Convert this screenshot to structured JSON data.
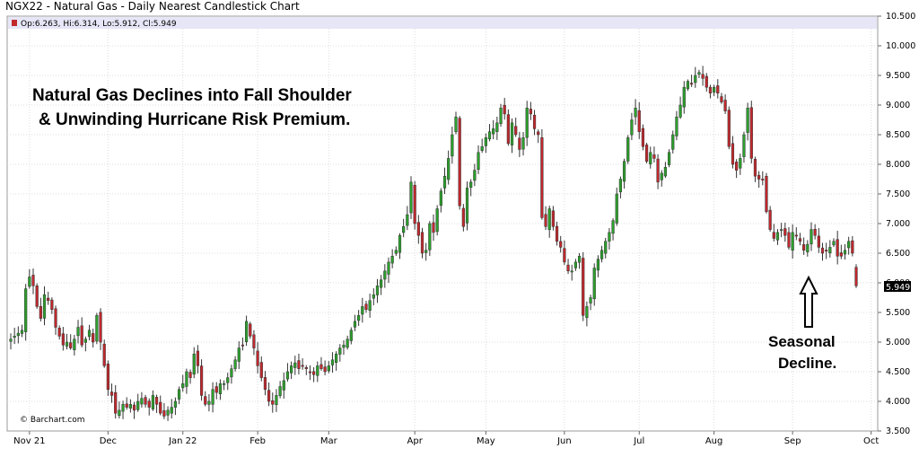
{
  "header": {
    "title": "NGX22 - Natural Gas - Daily Nearest Candlestick Chart",
    "ohlc": "Op:6.263, Hi:6.314, Lo:5.912, Cl:5.949"
  },
  "credit": "© Barchart.com",
  "annotation": {
    "line1": "Natural Gas Declines into Fall Shoulder",
    "line2": "& Unwinding Hurricane Risk Premium."
  },
  "seasonal": {
    "line1": "Seasonal",
    "line2": "Decline."
  },
  "last_price_label": "5.949",
  "colors": {
    "up": "#2ca02c",
    "down": "#c0282d",
    "legend_bar": "#e6e6f7",
    "last_box": "#000000",
    "grid": "#dcdcdc"
  },
  "chart_data": {
    "type": "candlestick",
    "title": "NGX22 - Natural Gas - Daily Nearest Candlestick Chart",
    "ylim": [
      3.5,
      10.5
    ],
    "y_ticks": [
      "3.500",
      "4.000",
      "4.500",
      "5.000",
      "5.500",
      "6.000",
      "6.500",
      "7.000",
      "7.500",
      "8.000",
      "8.500",
      "9.000",
      "9.500",
      "10.000",
      "10.500"
    ],
    "x_ticks": [
      {
        "label": "Nov 21",
        "index": 5
      },
      {
        "label": "Dec",
        "index": 26
      },
      {
        "label": "Jan 22",
        "index": 46
      },
      {
        "label": "Feb",
        "index": 66
      },
      {
        "label": "Mar",
        "index": 85
      },
      {
        "label": "Apr",
        "index": 108
      },
      {
        "label": "May",
        "index": 127
      },
      {
        "label": "Jun",
        "index": 148
      },
      {
        "label": "Jul",
        "index": 168
      },
      {
        "label": "Aug",
        "index": 188
      },
      {
        "label": "Sep",
        "index": 209
      },
      {
        "label": "Oct",
        "index": 230
      }
    ],
    "grid": true,
    "last": {
      "open": 6.263,
      "high": 6.314,
      "low": 5.912,
      "close": 5.949
    },
    "closes": [
      5.05,
      5.1,
      5.15,
      5.2,
      5.9,
      6.1,
      5.95,
      5.6,
      5.4,
      5.8,
      5.7,
      5.55,
      5.25,
      5.1,
      4.95,
      5.0,
      4.9,
      5.05,
      5.25,
      4.95,
      5.05,
      5.2,
      5.0,
      5.45,
      5.0,
      4.6,
      4.2,
      4.1,
      3.8,
      3.85,
      3.95,
      3.9,
      3.95,
      3.85,
      4.0,
      4.05,
      3.95,
      3.9,
      4.1,
      3.95,
      3.8,
      3.75,
      3.85,
      3.9,
      4.0,
      4.2,
      4.3,
      4.5,
      4.4,
      4.8,
      4.6,
      4.1,
      3.95,
      4.0,
      4.2,
      4.15,
      4.3,
      4.3,
      4.4,
      4.55,
      4.7,
      4.9,
      4.95,
      5.35,
      5.1,
      4.9,
      4.6,
      4.4,
      4.2,
      4.0,
      3.95,
      4.1,
      4.25,
      4.35,
      4.5,
      4.6,
      4.65,
      4.55,
      4.6,
      4.55,
      4.5,
      4.45,
      4.6,
      4.55,
      4.5,
      4.6,
      4.7,
      4.8,
      4.9,
      4.95,
      5.05,
      5.2,
      5.35,
      5.45,
      5.6,
      5.55,
      5.7,
      5.8,
      5.95,
      6.05,
      6.2,
      6.35,
      6.45,
      6.55,
      6.8,
      6.95,
      7.15,
      7.7,
      7.0,
      6.8,
      6.5,
      6.55,
      7.0,
      6.85,
      7.25,
      7.55,
      7.8,
      8.1,
      8.5,
      8.8,
      7.3,
      6.95,
      7.6,
      7.7,
      7.9,
      8.2,
      8.3,
      8.45,
      8.55,
      8.6,
      8.7,
      8.95,
      8.85,
      8.35,
      8.7,
      8.5,
      8.25,
      8.45,
      8.95,
      8.85,
      8.6,
      8.5,
      7.1,
      6.95,
      7.25,
      6.95,
      6.7,
      6.6,
      6.35,
      6.2,
      6.2,
      6.35,
      6.45,
      5.45,
      5.6,
      5.75,
      6.25,
      6.4,
      6.55,
      6.7,
      6.85,
      7.05,
      7.5,
      7.75,
      8.05,
      8.45,
      8.75,
      8.95,
      8.55,
      8.3,
      8.05,
      8.2,
      8.1,
      7.7,
      7.85,
      7.95,
      8.2,
      8.5,
      8.8,
      9.0,
      9.3,
      9.4,
      9.35,
      9.5,
      9.55,
      9.45,
      9.3,
      9.2,
      9.3,
      9.2,
      9.05,
      8.9,
      8.3,
      8.0,
      7.9,
      8.1,
      8.5,
      8.95,
      8.1,
      7.8,
      7.75,
      7.75,
      7.2,
      6.9,
      6.75,
      6.85,
      6.9,
      6.8,
      6.6,
      6.85,
      6.8,
      6.7,
      6.55,
      6.65,
      6.9,
      6.8,
      6.6,
      6.5,
      6.55,
      6.6,
      6.7,
      6.45,
      6.45,
      6.55,
      6.7,
      6.5,
      5.95
    ]
  }
}
